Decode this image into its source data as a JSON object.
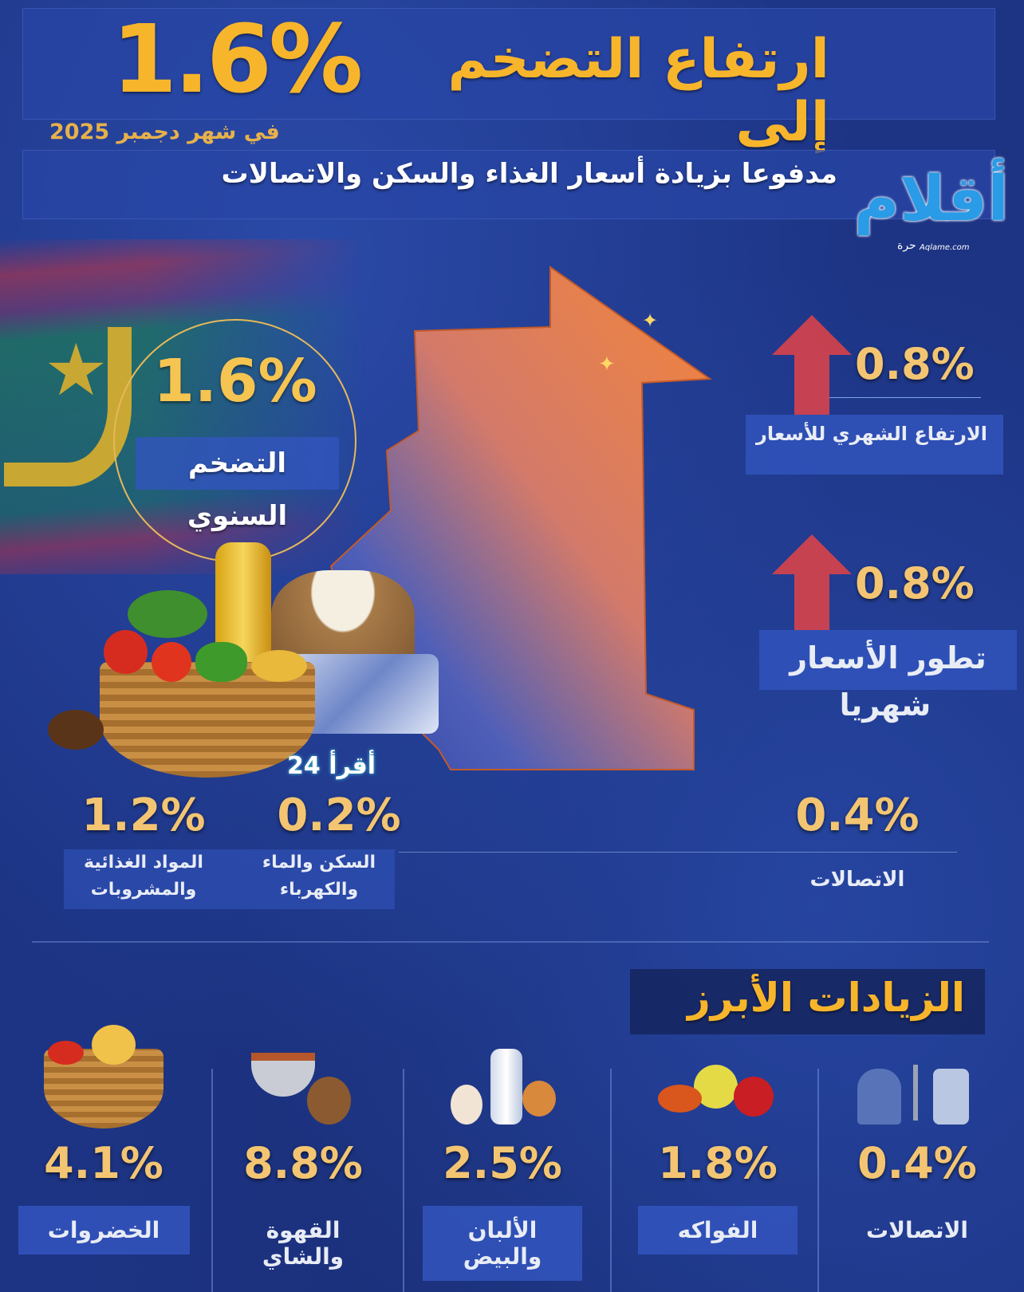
{
  "header": {
    "title": "ارتفاع التضخم إلى",
    "title_value": "1.6%",
    "date": "في شهر دجمبر 2025",
    "subtitle": "مدفوعا بزيادة أسعار الغذاء والسكن والاتصالات"
  },
  "logo": {
    "text": "أقلام",
    "sub": "حرة",
    "site": "Aqlame.com"
  },
  "annual": {
    "value": "1.6%",
    "label": "التضخم السنوي"
  },
  "monthly_rise": {
    "value": "0.8%",
    "label": "الارتفاع الشهري للأسعار"
  },
  "monthly_trend": {
    "value": "0.8%",
    "label_line1": "تطور الأسعار",
    "label_line2": "شهريا"
  },
  "watermark": {
    "text": "24 أقرأ"
  },
  "components": [
    {
      "value": "1.2%",
      "label_line1": "المواد الغذائية",
      "label_line2": "والمشروبات"
    },
    {
      "value": "0.2%",
      "label_line1": "السكن والماء",
      "label_line2": "والكهرباء"
    },
    {
      "value": "0.4%",
      "label_line1": "الاتصالات",
      "label_line2": ""
    }
  ],
  "highlights": {
    "title": "الزيادات الأبرز",
    "items": [
      {
        "value": "4.1%",
        "label": "الخضروات",
        "icon": "vegetable-basket-icon"
      },
      {
        "value": "8.8%",
        "label": "القهوة والشاي",
        "icon": "coffee-tea-icon"
      },
      {
        "value": "2.5%",
        "label": "الألبان والبيض",
        "icon": "milk-eggs-icon"
      },
      {
        "value": "1.8%",
        "label": "الفواكه",
        "icon": "fruits-icon"
      },
      {
        "value": "0.4%",
        "label": "الاتصالات",
        "icon": "telecom-icon"
      }
    ]
  },
  "colors": {
    "gold": "#f7b52c",
    "background": "#1d3484",
    "arrow": "#d8434a"
  }
}
